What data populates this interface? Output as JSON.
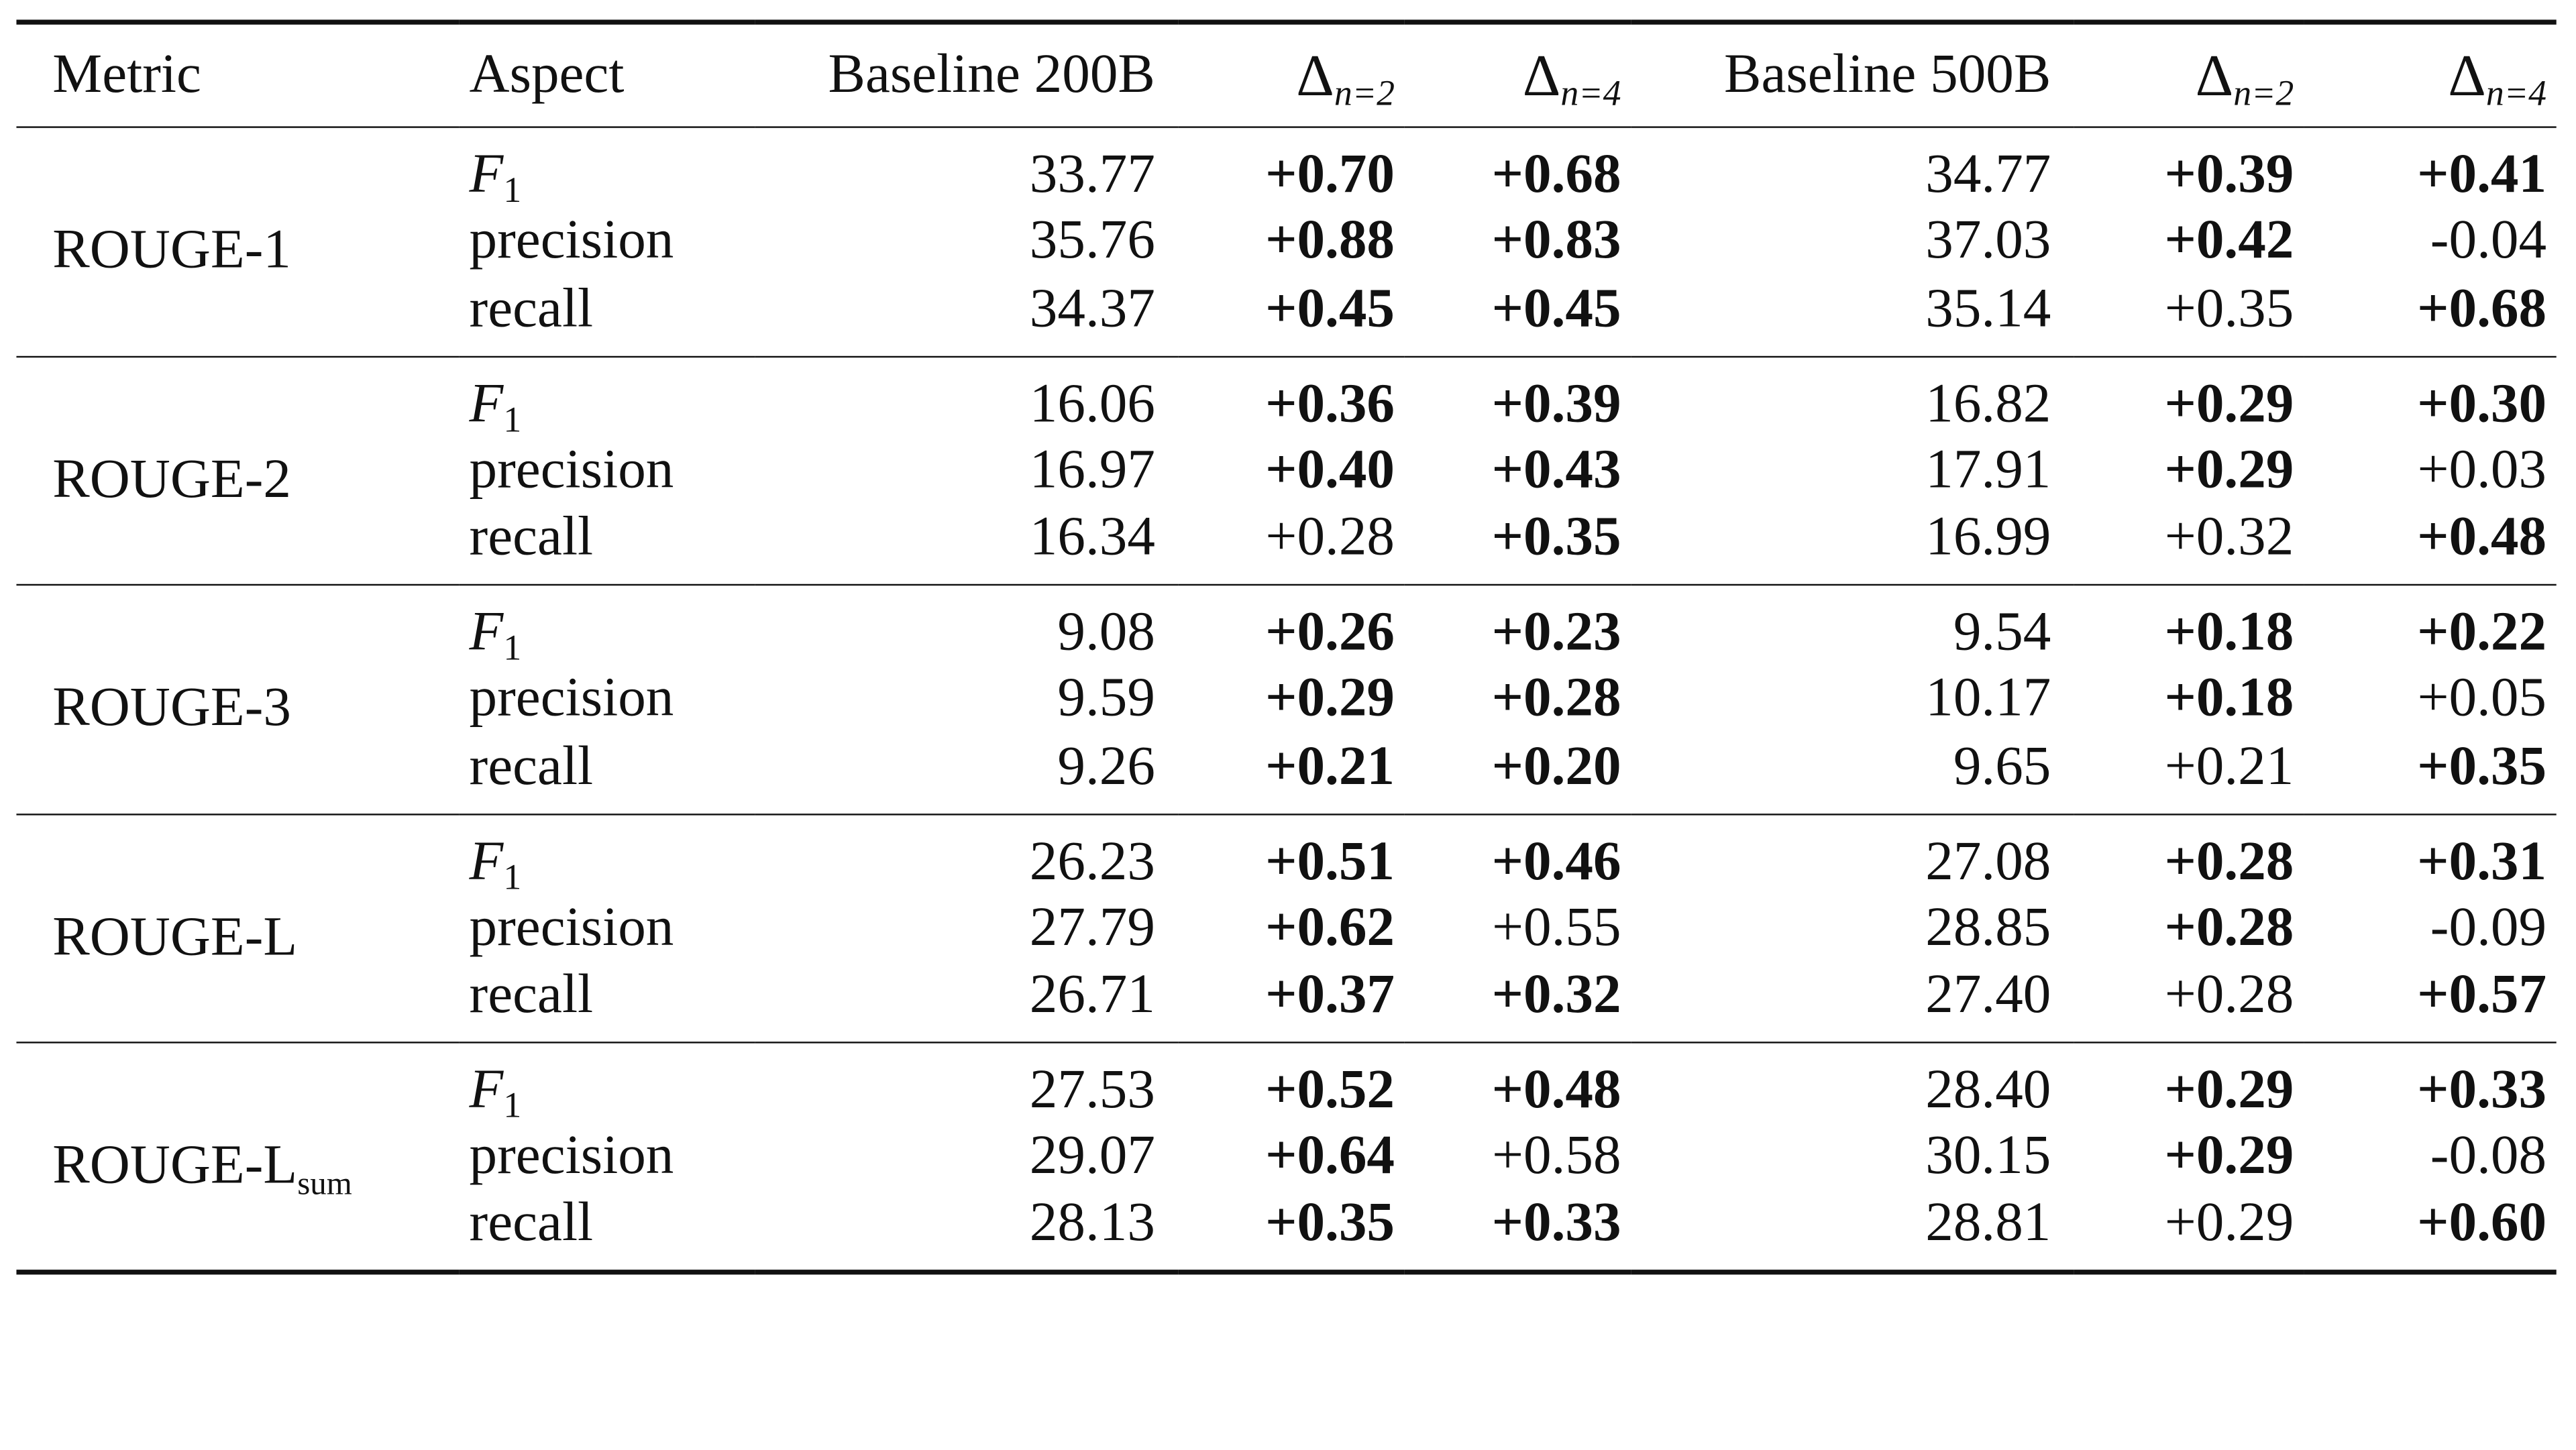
{
  "table": {
    "headers": {
      "metric": "Metric",
      "aspect": "Aspect",
      "baseline200": "Baseline 200B",
      "baseline500": "Baseline 500B",
      "delta_symbol": "Δ",
      "delta_n2": "n=2",
      "delta_n4": "n=4"
    },
    "groups": [
      {
        "metric": "ROUGE-1",
        "metric_sub": "",
        "rows": [
          {
            "aspect": "F",
            "aspect_sub": "1",
            "b200": "33.77",
            "d200_n2": "+0.70",
            "d200_n2_bold": true,
            "d200_n4": "+0.68",
            "d200_n4_bold": true,
            "b500": "34.77",
            "d500_n2": "+0.39",
            "d500_n2_bold": true,
            "d500_n4": "+0.41",
            "d500_n4_bold": true
          },
          {
            "aspect": "precision",
            "aspect_sub": "",
            "b200": "35.76",
            "d200_n2": "+0.88",
            "d200_n2_bold": true,
            "d200_n4": "+0.83",
            "d200_n4_bold": true,
            "b500": "37.03",
            "d500_n2": "+0.42",
            "d500_n2_bold": true,
            "d500_n4": "-0.04",
            "d500_n4_bold": false
          },
          {
            "aspect": "recall",
            "aspect_sub": "",
            "b200": "34.37",
            "d200_n2": "+0.45",
            "d200_n2_bold": true,
            "d200_n4": "+0.45",
            "d200_n4_bold": true,
            "b500": "35.14",
            "d500_n2": "+0.35",
            "d500_n2_bold": false,
            "d500_n4": "+0.68",
            "d500_n4_bold": true
          }
        ]
      },
      {
        "metric": "ROUGE-2",
        "metric_sub": "",
        "rows": [
          {
            "aspect": "F",
            "aspect_sub": "1",
            "b200": "16.06",
            "d200_n2": "+0.36",
            "d200_n2_bold": true,
            "d200_n4": "+0.39",
            "d200_n4_bold": true,
            "b500": "16.82",
            "d500_n2": "+0.29",
            "d500_n2_bold": true,
            "d500_n4": "+0.30",
            "d500_n4_bold": true
          },
          {
            "aspect": "precision",
            "aspect_sub": "",
            "b200": "16.97",
            "d200_n2": "+0.40",
            "d200_n2_bold": true,
            "d200_n4": "+0.43",
            "d200_n4_bold": true,
            "b500": "17.91",
            "d500_n2": "+0.29",
            "d500_n2_bold": true,
            "d500_n4": "+0.03",
            "d500_n4_bold": false
          },
          {
            "aspect": "recall",
            "aspect_sub": "",
            "b200": "16.34",
            "d200_n2": "+0.28",
            "d200_n2_bold": false,
            "d200_n4": "+0.35",
            "d200_n4_bold": true,
            "b500": "16.99",
            "d500_n2": "+0.32",
            "d500_n2_bold": false,
            "d500_n4": "+0.48",
            "d500_n4_bold": true
          }
        ]
      },
      {
        "metric": "ROUGE-3",
        "metric_sub": "",
        "rows": [
          {
            "aspect": "F",
            "aspect_sub": "1",
            "b200": "9.08",
            "d200_n2": "+0.26",
            "d200_n2_bold": true,
            "d200_n4": "+0.23",
            "d200_n4_bold": true,
            "b500": "9.54",
            "d500_n2": "+0.18",
            "d500_n2_bold": true,
            "d500_n4": "+0.22",
            "d500_n4_bold": true
          },
          {
            "aspect": "precision",
            "aspect_sub": "",
            "b200": "9.59",
            "d200_n2": "+0.29",
            "d200_n2_bold": true,
            "d200_n4": "+0.28",
            "d200_n4_bold": true,
            "b500": "10.17",
            "d500_n2": "+0.18",
            "d500_n2_bold": true,
            "d500_n4": "+0.05",
            "d500_n4_bold": false
          },
          {
            "aspect": "recall",
            "aspect_sub": "",
            "b200": "9.26",
            "d200_n2": "+0.21",
            "d200_n2_bold": true,
            "d200_n4": "+0.20",
            "d200_n4_bold": true,
            "b500": "9.65",
            "d500_n2": "+0.21",
            "d500_n2_bold": false,
            "d500_n4": "+0.35",
            "d500_n4_bold": true
          }
        ]
      },
      {
        "metric": "ROUGE-L",
        "metric_sub": "",
        "rows": [
          {
            "aspect": "F",
            "aspect_sub": "1",
            "b200": "26.23",
            "d200_n2": "+0.51",
            "d200_n2_bold": true,
            "d200_n4": "+0.46",
            "d200_n4_bold": true,
            "b500": "27.08",
            "d500_n2": "+0.28",
            "d500_n2_bold": true,
            "d500_n4": "+0.31",
            "d500_n4_bold": true
          },
          {
            "aspect": "precision",
            "aspect_sub": "",
            "b200": "27.79",
            "d200_n2": "+0.62",
            "d200_n2_bold": true,
            "d200_n4": "+0.55",
            "d200_n4_bold": false,
            "b500": "28.85",
            "d500_n2": "+0.28",
            "d500_n2_bold": true,
            "d500_n4": "-0.09",
            "d500_n4_bold": false
          },
          {
            "aspect": "recall",
            "aspect_sub": "",
            "b200": "26.71",
            "d200_n2": "+0.37",
            "d200_n2_bold": true,
            "d200_n4": "+0.32",
            "d200_n4_bold": true,
            "b500": "27.40",
            "d500_n2": "+0.28",
            "d500_n2_bold": false,
            "d500_n4": "+0.57",
            "d500_n4_bold": true
          }
        ]
      },
      {
        "metric": "ROUGE-L",
        "metric_sub": "sum",
        "rows": [
          {
            "aspect": "F",
            "aspect_sub": "1",
            "b200": "27.53",
            "d200_n2": "+0.52",
            "d200_n2_bold": true,
            "d200_n4": "+0.48",
            "d200_n4_bold": true,
            "b500": "28.40",
            "d500_n2": "+0.29",
            "d500_n2_bold": true,
            "d500_n4": "+0.33",
            "d500_n4_bold": true
          },
          {
            "aspect": "precision",
            "aspect_sub": "",
            "b200": "29.07",
            "d200_n2": "+0.64",
            "d200_n2_bold": true,
            "d200_n4": "+0.58",
            "d200_n4_bold": false,
            "b500": "30.15",
            "d500_n2": "+0.29",
            "d500_n2_bold": true,
            "d500_n4": "-0.08",
            "d500_n4_bold": false
          },
          {
            "aspect": "recall",
            "aspect_sub": "",
            "b200": "28.13",
            "d200_n2": "+0.35",
            "d200_n2_bold": true,
            "d200_n4": "+0.33",
            "d200_n4_bold": true,
            "b500": "28.81",
            "d500_n2": "+0.29",
            "d500_n2_bold": false,
            "d500_n4": "+0.60",
            "d500_n4_bold": true
          }
        ]
      }
    ]
  }
}
